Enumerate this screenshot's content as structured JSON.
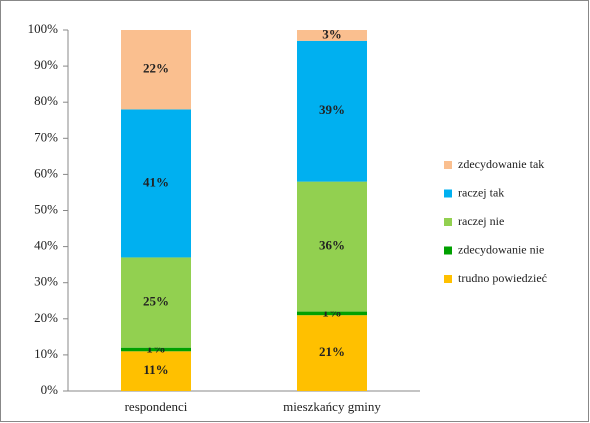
{
  "chart_data": {
    "type": "stacked_bar",
    "categories": [
      "respondenci",
      "mieszkańcy gminy"
    ],
    "series": [
      {
        "name": "trudno powiedzieć",
        "color": "#ffc000",
        "values": [
          11,
          21
        ],
        "value_labels": [
          "11%",
          "21%"
        ]
      },
      {
        "name": "zdecydowanie nie",
        "color": "#00a000",
        "values": [
          1,
          1
        ],
        "value_labels": [
          "1%",
          "1%"
        ]
      },
      {
        "name": "raczej nie",
        "color": "#92d050",
        "values": [
          25,
          36
        ],
        "value_labels": [
          "25%",
          "36%"
        ]
      },
      {
        "name": "raczej tak",
        "color": "#00b0f0",
        "values": [
          41,
          39
        ],
        "value_labels": [
          "41%",
          "39%"
        ]
      },
      {
        "name": "zdecydowanie tak",
        "color": "#fabf8f",
        "values": [
          22,
          3
        ],
        "value_labels": [
          "22%",
          "3%"
        ]
      }
    ],
    "ylim": [
      0,
      100
    ],
    "yticks": [
      {
        "value": 0,
        "label": "0%"
      },
      {
        "value": 10,
        "label": "10%"
      },
      {
        "value": 20,
        "label": "20%"
      },
      {
        "value": 30,
        "label": "30%"
      },
      {
        "value": 40,
        "label": "40%"
      },
      {
        "value": 50,
        "label": "50%"
      },
      {
        "value": 60,
        "label": "60%"
      },
      {
        "value": 70,
        "label": "70%"
      },
      {
        "value": 80,
        "label": "80%"
      },
      {
        "value": 90,
        "label": "90%"
      },
      {
        "value": 100,
        "label": "100%"
      }
    ],
    "legend": "right"
  }
}
